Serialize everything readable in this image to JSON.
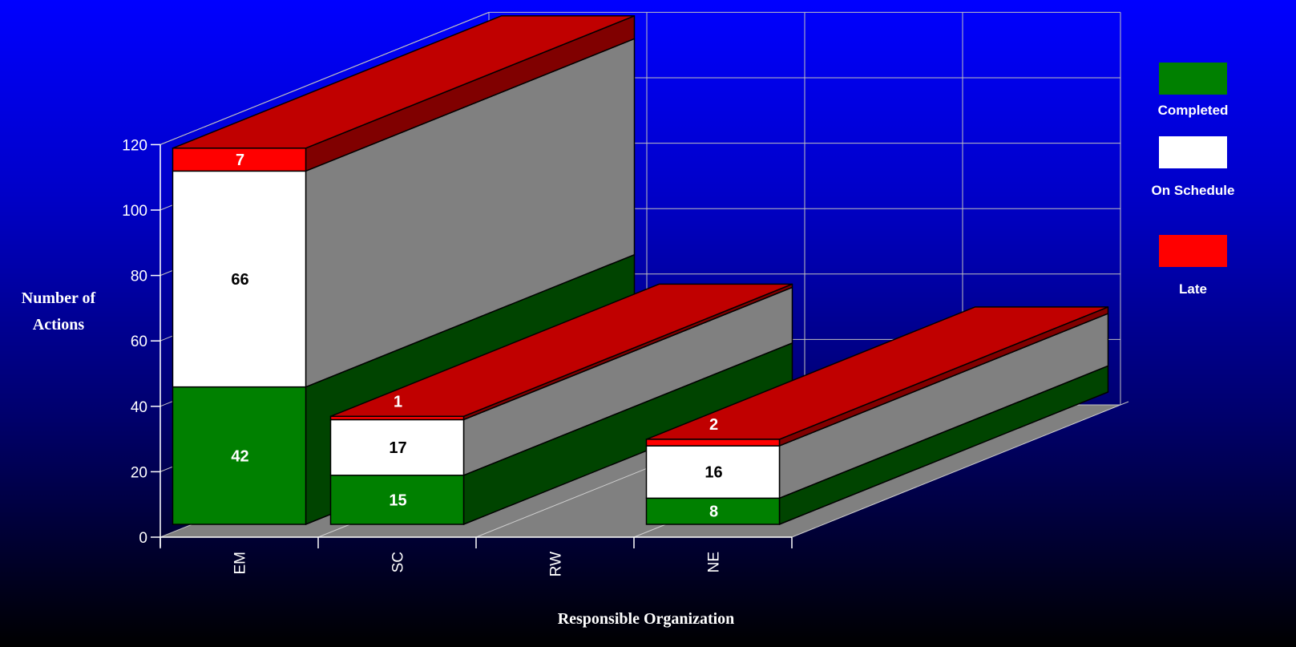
{
  "chart_data": {
    "type": "bar",
    "stacked": true,
    "three_d": true,
    "categories": [
      "EM",
      "SC",
      "RW",
      "NE"
    ],
    "series": [
      {
        "name": "Completed",
        "color": "#008000",
        "values": [
          42,
          15,
          0,
          8
        ]
      },
      {
        "name": "On Schedule",
        "color": "#ffffff",
        "values": [
          66,
          17,
          0,
          16
        ]
      },
      {
        "name": "Late",
        "color": "#ff0000",
        "values": [
          7,
          1,
          0,
          2
        ]
      }
    ],
    "title": "",
    "xlabel": "Responsible Organization",
    "ylabel_lines": [
      "Number of",
      "Actions"
    ],
    "ylim": [
      0,
      120
    ],
    "yticks": [
      "0",
      "20",
      "40",
      "60",
      "80",
      "100",
      "120"
    ],
    "grid": true,
    "legend_position": "right"
  }
}
